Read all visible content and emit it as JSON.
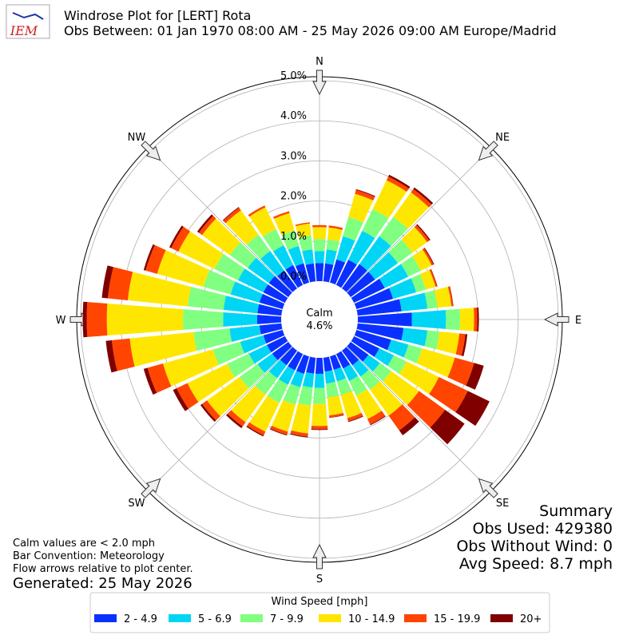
{
  "logo": "IEM",
  "chart_data": {
    "type": "windrose",
    "title": "Windrose Plot for [LERT] Rota",
    "subtitle": "Obs Between: 01 Jan 1970 08:00 AM - 25 May 2026 09:00 AM Europe/Madrid",
    "x": [
      0,
      10,
      20,
      30,
      40,
      50,
      60,
      70,
      80,
      90,
      100,
      110,
      120,
      130,
      140,
      150,
      160,
      170,
      180,
      190,
      200,
      210,
      220,
      230,
      240,
      250,
      260,
      270,
      280,
      290,
      300,
      310,
      320,
      330,
      340,
      350
    ],
    "xlim": [
      0,
      360
    ],
    "xticks": [
      {
        "value": 0,
        "label": "N"
      },
      {
        "value": 45,
        "label": "NE"
      },
      {
        "value": 90,
        "label": "E"
      },
      {
        "value": 135,
        "label": "SE"
      },
      {
        "value": 180,
        "label": "S"
      },
      {
        "value": 225,
        "label": "SW"
      },
      {
        "value": 270,
        "label": "W"
      },
      {
        "value": 315,
        "label": "NW"
      }
    ],
    "ylim": [
      0,
      5.1
    ],
    "yticks": [
      {
        "value": 0,
        "label": "0.0%"
      },
      {
        "value": 1,
        "label": "1.0%"
      },
      {
        "value": 2,
        "label": "2.0%"
      },
      {
        "value": 3,
        "label": "3.0%"
      },
      {
        "value": 4,
        "label": "4.0%"
      },
      {
        "value": 5,
        "label": "5.0%"
      }
    ],
    "grid": true,
    "calm": {
      "label": "Calm",
      "value": "4.6%"
    },
    "legend_title": "Wind Speed [mph]",
    "series": [
      {
        "name": "2 - 4.9",
        "color": "#0a30ff",
        "values": [
          0.45,
          0.45,
          0.6,
          0.7,
          0.75,
          0.75,
          0.85,
          0.95,
          1.1,
          1.35,
          1.15,
          0.9,
          0.7,
          0.55,
          0.45,
          0.4,
          0.35,
          0.35,
          0.4,
          0.4,
          0.45,
          0.45,
          0.45,
          0.5,
          0.5,
          0.5,
          0.55,
          0.6,
          0.6,
          0.6,
          0.6,
          0.6,
          0.55,
          0.55,
          0.5,
          0.45
        ]
      },
      {
        "name": "5 - 6.9",
        "color": "#00d5f5",
        "values": [
          0.3,
          0.35,
          0.6,
          0.8,
          0.85,
          0.7,
          0.65,
          0.6,
          0.65,
          0.85,
          0.6,
          0.45,
          0.4,
          0.35,
          0.35,
          0.35,
          0.3,
          0.3,
          0.35,
          0.35,
          0.35,
          0.4,
          0.4,
          0.45,
          0.5,
          0.6,
          0.75,
          0.85,
          0.85,
          0.75,
          0.7,
          0.65,
          0.6,
          0.55,
          0.45,
          0.35
        ]
      },
      {
        "name": "7 - 9.9",
        "color": "#80ff80",
        "values": [
          0.3,
          0.25,
          0.5,
          0.6,
          0.6,
          0.45,
          0.35,
          0.25,
          0.25,
          0.35,
          0.3,
          0.35,
          0.35,
          0.35,
          0.4,
          0.4,
          0.35,
          0.35,
          0.4,
          0.45,
          0.45,
          0.5,
          0.5,
          0.55,
          0.6,
          0.7,
          0.9,
          1.0,
          0.9,
          0.7,
          0.65,
          0.55,
          0.5,
          0.45,
          0.4,
          0.35
        ]
      },
      {
        "name": "10 - 14.9",
        "color": "#ffe600",
        "values": [
          0.3,
          0.3,
          0.6,
          0.8,
          0.75,
          0.45,
          0.3,
          0.25,
          0.35,
          0.35,
          0.5,
          0.85,
          0.9,
          0.85,
          0.8,
          0.65,
          0.6,
          0.45,
          0.55,
          0.7,
          0.7,
          0.8,
          0.85,
          1.0,
          1.1,
          1.3,
          1.6,
          1.9,
          1.5,
          1.2,
          1.0,
          0.85,
          0.75,
          0.6,
          0.45,
          0.3
        ]
      },
      {
        "name": "15 - 19.9",
        "color": "#ff4500",
        "values": [
          0.05,
          0.05,
          0.1,
          0.1,
          0.1,
          0.07,
          0.05,
          0.04,
          0.04,
          0.08,
          0.15,
          0.5,
          0.8,
          0.8,
          0.45,
          0.15,
          0.08,
          0.05,
          0.08,
          0.08,
          0.08,
          0.1,
          0.13,
          0.15,
          0.3,
          0.4,
          0.45,
          0.5,
          0.5,
          0.3,
          0.2,
          0.1,
          0.08,
          0.05,
          0.05,
          0.03
        ]
      },
      {
        "name": "20+",
        "color": "#800000",
        "values": [
          0,
          0,
          0.02,
          0.05,
          0.05,
          0.03,
          0.02,
          0.01,
          0.01,
          0.04,
          0.05,
          0.25,
          0.6,
          0.6,
          0.15,
          0.02,
          0.02,
          0.01,
          0.02,
          0.02,
          0.02,
          0.03,
          0.05,
          0.05,
          0.1,
          0.1,
          0.15,
          0.1,
          0.15,
          0.05,
          0.05,
          0.05,
          0.02,
          0,
          0,
          0
        ]
      }
    ],
    "notes": [
      "Calm values are < 2.0 mph",
      "Bar Convention: Meteorology",
      "Flow arrows relative to plot center."
    ],
    "generated": "Generated: 25 May 2026",
    "summary": [
      "Summary",
      "Obs Used: 429380",
      "Obs Without Wind: 0",
      "Avg Speed: 8.7 mph"
    ]
  }
}
